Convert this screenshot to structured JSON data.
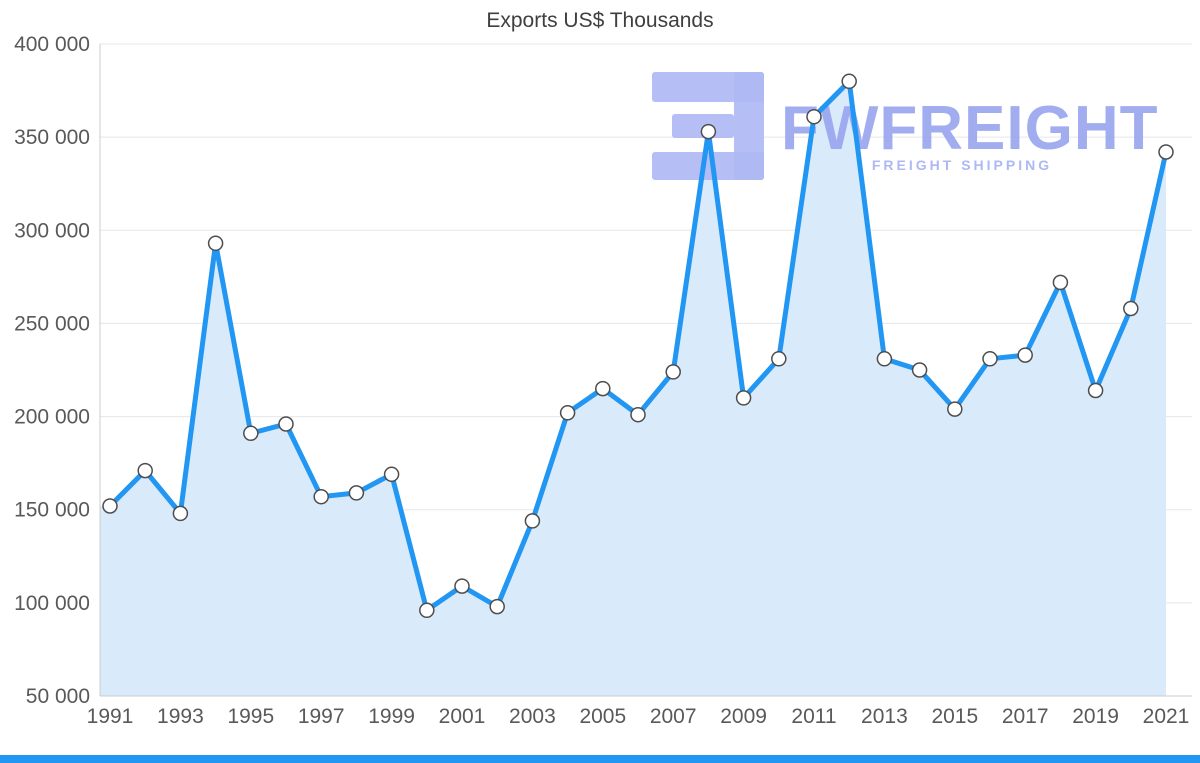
{
  "watermark": {
    "brand": "FWFREIGHT",
    "tagline": "FREIGHT SHIPPING",
    "brand_color": "#98a5ef",
    "tagline_color": "#aab5f3",
    "icon_color": "#aeb8f4"
  },
  "colors": {
    "line": "#2196f3",
    "fill": "#d9eafb",
    "grid": "#e7e7e7",
    "axis": "#cccccc",
    "tick_text": "#595959",
    "title_text": "#3f3f3f",
    "marker_fill": "#ffffff",
    "marker_stroke": "#4d4d4d",
    "bottom_bar": "#2196f3"
  },
  "chart_data": {
    "type": "area",
    "title": "Exports US$ Thousands",
    "xlabel": "",
    "ylabel": "",
    "grid": true,
    "legend": false,
    "x": [
      1991,
      1992,
      1993,
      1994,
      1995,
      1996,
      1997,
      1998,
      1999,
      2000,
      2001,
      2002,
      2003,
      2004,
      2005,
      2006,
      2007,
      2008,
      2009,
      2010,
      2011,
      2012,
      2013,
      2014,
      2015,
      2016,
      2017,
      2018,
      2019,
      2020,
      2021
    ],
    "values": [
      152000,
      171000,
      148000,
      293000,
      191000,
      196000,
      157000,
      159000,
      169000,
      96000,
      109000,
      98000,
      144000,
      202000,
      215000,
      201000,
      224000,
      353000,
      210000,
      231000,
      361000,
      380000,
      231000,
      225000,
      204000,
      231000,
      233000,
      272000,
      214000,
      258000,
      342000
    ],
    "ylim": [
      50000,
      400000
    ],
    "ytick_values": [
      400000,
      350000,
      300000,
      250000,
      200000,
      150000,
      100000,
      50000
    ],
    "ytick_labels": [
      "400 000",
      "350 000",
      "300 000",
      "250 000",
      "200 000",
      "150 000",
      "100 000",
      "50 000"
    ],
    "xtick_values": [
      1991,
      1993,
      1995,
      1997,
      1999,
      2001,
      2003,
      2005,
      2007,
      2009,
      2011,
      2013,
      2015,
      2017,
      2019,
      2021
    ],
    "xtick_labels": [
      "1991",
      "1993",
      "1995",
      "1997",
      "1999",
      "2001",
      "2003",
      "2005",
      "2007",
      "2009",
      "2011",
      "2013",
      "2015",
      "2017",
      "2019",
      "2021"
    ]
  }
}
